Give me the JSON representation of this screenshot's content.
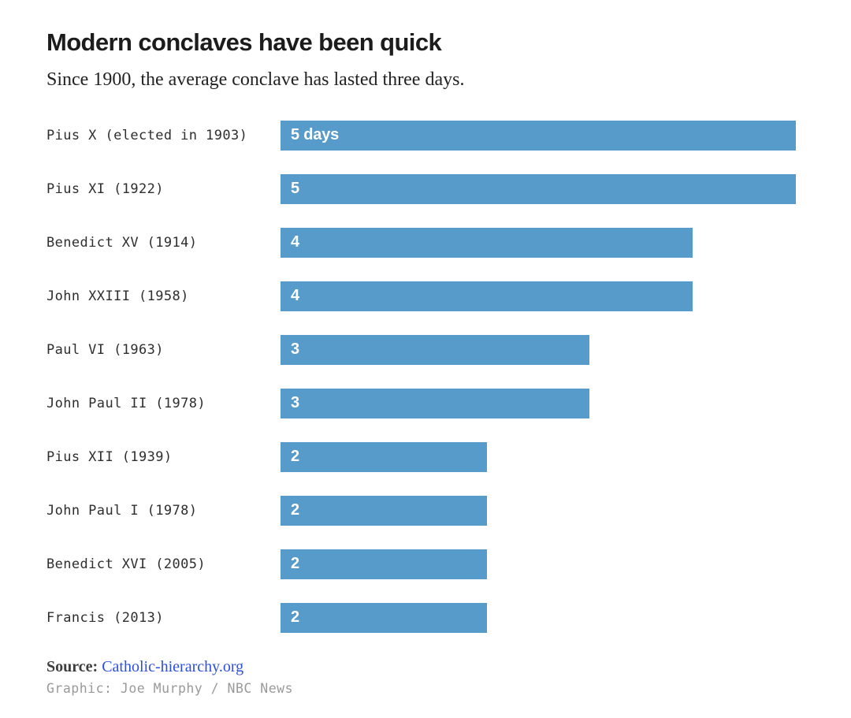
{
  "header": {
    "title": "Modern conclaves have been quick",
    "subtitle": "Since 1900, the average conclave has lasted three days."
  },
  "chart_data": {
    "type": "bar",
    "orientation": "horizontal",
    "title": "Modern conclaves have been quick",
    "subtitle": "Since 1900, the average conclave has lasted three days.",
    "xlabel": "",
    "ylabel": "",
    "xlim": [
      0,
      5
    ],
    "grid": false,
    "legend": null,
    "unit": "days",
    "bar_color": "#579bca",
    "value_label_color": "#ffffff",
    "categories": [
      "Pius X (elected in 1903)",
      "Pius XI (1922)",
      "Benedict XV (1914)",
      "John XXIII (1958)",
      "Paul VI (1963)",
      "John Paul II (1978)",
      "Pius XII (1939)",
      "John Paul I (1978)",
      "Benedict XVI (2005)",
      "Francis (2013)"
    ],
    "values": [
      5,
      5,
      4,
      4,
      3,
      3,
      2,
      2,
      2,
      2
    ],
    "bar_labels": [
      "5 days",
      "5",
      "4",
      "4",
      "3",
      "3",
      "2",
      "2",
      "2",
      "2"
    ]
  },
  "footer": {
    "source_label": "Source:",
    "source_link": "Catholic-hierarchy.org",
    "link_color": "#2b4fdf",
    "credit": "Graphic: Joe Murphy / NBC News"
  }
}
